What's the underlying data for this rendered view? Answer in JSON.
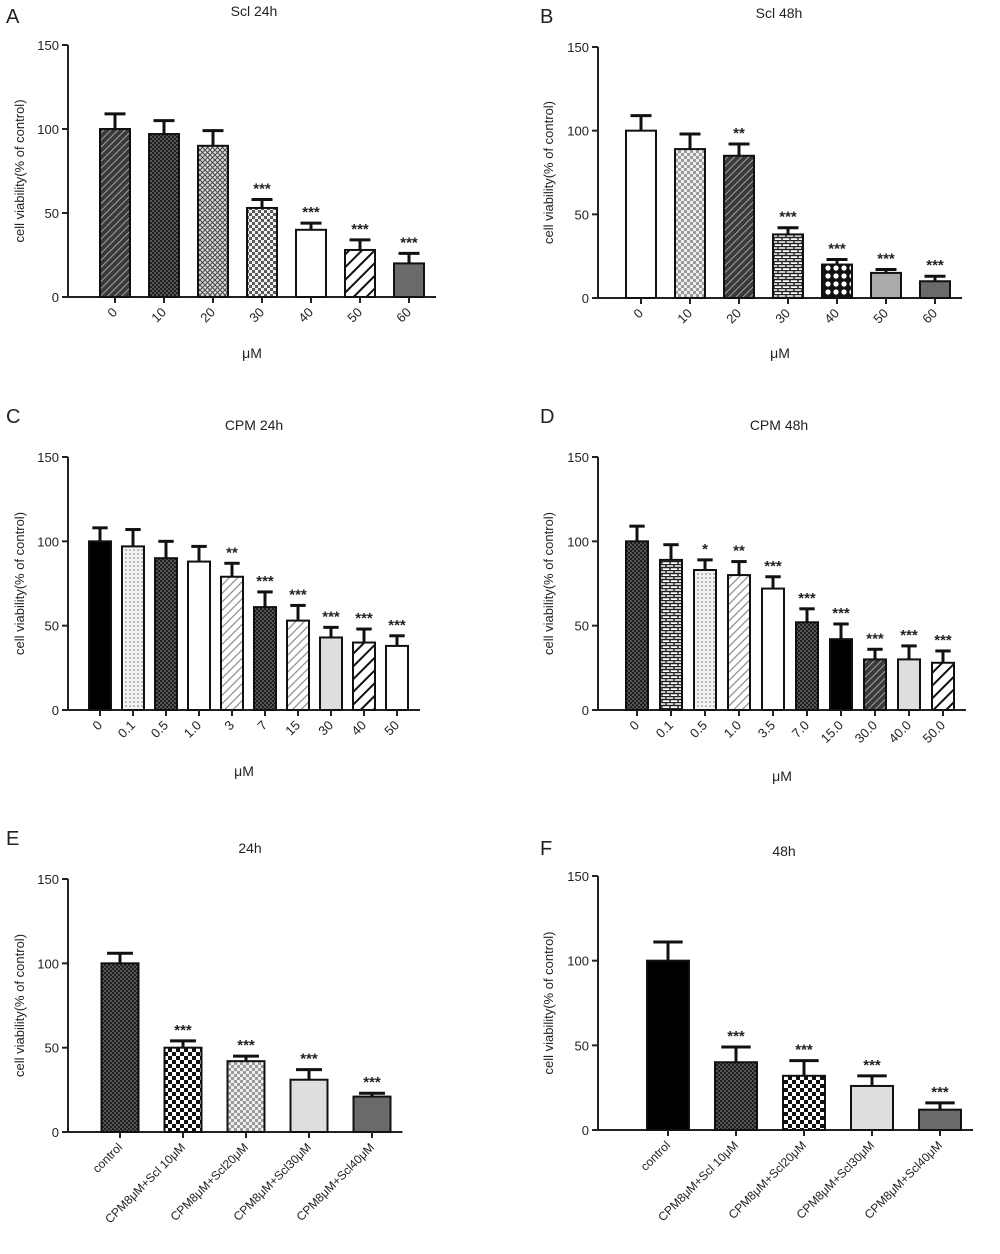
{
  "chart_data": [
    {
      "panel_letter": "A",
      "type": "bar",
      "title": "Scl 24h",
      "xlabel": "μM",
      "ylabel": "cell viability(% of control)",
      "ylim": [
        0,
        150
      ],
      "yticks": [
        0,
        50,
        100,
        150
      ],
      "grid": false,
      "categories": [
        "0",
        "10",
        "20",
        "30",
        "40",
        "50",
        "60"
      ],
      "values": [
        100,
        97,
        90,
        53,
        40,
        28,
        20
      ],
      "errors": [
        9,
        8,
        9,
        5,
        4,
        6,
        6
      ],
      "significance": [
        "",
        "",
        "",
        "***",
        "***",
        "***",
        "***"
      ],
      "fills": [
        "hatch-dark",
        "check-dark",
        "cross-light",
        "check-small",
        "white",
        "hatch-bw",
        "solid-gray"
      ]
    },
    {
      "panel_letter": "B",
      "type": "bar",
      "title": "Scl 48h",
      "xlabel": "μM",
      "ylabel": "cell viability(% of control)",
      "ylim": [
        0,
        150
      ],
      "yticks": [
        0,
        50,
        100,
        150
      ],
      "grid": false,
      "categories": [
        "0",
        "10",
        "20",
        "30",
        "40",
        "50",
        "60"
      ],
      "values": [
        100,
        89,
        85,
        38,
        20,
        15,
        10
      ],
      "errors": [
        9,
        9,
        7,
        4,
        3,
        2,
        3
      ],
      "significance": [
        "",
        "",
        "**",
        "***",
        "***",
        "***",
        "***"
      ],
      "fills": [
        "white",
        "check-light",
        "hatch-dark",
        "brick",
        "dots",
        "solid-light",
        "solid-gray"
      ]
    },
    {
      "panel_letter": "C",
      "type": "bar",
      "title": "CPM 24h",
      "xlabel": "μM",
      "ylabel": "cell viability(% of control)",
      "ylim": [
        0,
        150
      ],
      "yticks": [
        0,
        50,
        100,
        150
      ],
      "grid": false,
      "categories": [
        "0",
        "0.1",
        "0.5",
        "1.0",
        "3",
        "7",
        "15",
        "30",
        "40",
        "50"
      ],
      "values": [
        100,
        97,
        90,
        88,
        79,
        61,
        53,
        43,
        40,
        38
      ],
      "errors": [
        8,
        10,
        10,
        9,
        8,
        9,
        9,
        6,
        8,
        6
      ],
      "significance": [
        "",
        "",
        "",
        "",
        "**",
        "***",
        "***",
        "***",
        "***",
        "***"
      ],
      "fills": [
        "solid-black",
        "dots-light",
        "check-dark",
        "white",
        "hatch-light",
        "check-dark",
        "hatch-light",
        "solid-lighter",
        "hatch-bw",
        "white"
      ]
    },
    {
      "panel_letter": "D",
      "type": "bar",
      "title": "CPM 48h",
      "xlabel": "μM",
      "ylabel": "cell viability(% of control)",
      "ylim": [
        0,
        150
      ],
      "yticks": [
        0,
        50,
        100,
        150
      ],
      "grid": false,
      "categories": [
        "0",
        "0.1",
        "0.5",
        "1.0",
        "3.5",
        "7.0",
        "15.0",
        "30.0",
        "40.0",
        "50.0"
      ],
      "values": [
        100,
        89,
        83,
        80,
        72,
        52,
        42,
        30,
        30,
        28
      ],
      "errors": [
        9,
        9,
        6,
        8,
        7,
        8,
        9,
        6,
        8,
        7
      ],
      "significance": [
        "",
        "",
        "*",
        "**",
        "***",
        "***",
        "***",
        "***",
        "***",
        "***"
      ],
      "fills": [
        "check-dark",
        "brick",
        "dots-light",
        "hatch-light",
        "white",
        "check-dark",
        "solid-black",
        "hatch-dark",
        "solid-lighter",
        "hatch-bw"
      ]
    },
    {
      "panel_letter": "E",
      "type": "bar",
      "title": "24h",
      "xlabel": "",
      "ylabel": "cell viability(% of control)",
      "ylim": [
        0,
        150
      ],
      "yticks": [
        0,
        50,
        100,
        150
      ],
      "grid": false,
      "categories": [
        "control",
        "CPM8μM+Scl 10μM",
        "CPM8μM+Scl20μM",
        "CPM8μM+Scl30μM",
        "CPM8μM+Scl40μM"
      ],
      "values": [
        100,
        50,
        42,
        31,
        21
      ],
      "errors": [
        6,
        4,
        3,
        6,
        2
      ],
      "significance": [
        "",
        "***",
        "***",
        "***",
        "***"
      ],
      "fills": [
        "check-dark",
        "check-bw",
        "check-light",
        "solid-lighter",
        "solid-gray"
      ]
    },
    {
      "panel_letter": "F",
      "type": "bar",
      "title": "48h",
      "xlabel": "",
      "ylabel": "cell viability(% of control)",
      "ylim": [
        0,
        150
      ],
      "yticks": [
        0,
        50,
        100,
        150
      ],
      "grid": false,
      "categories": [
        "control",
        "CPM8μM+Scl 10μM",
        "CPM8μM+Scl20μM",
        "CPM8μM+Scl30μM",
        "CPM8μM+Scl40μM"
      ],
      "values": [
        100,
        40,
        32,
        26,
        12
      ],
      "errors": [
        11,
        9,
        9,
        6,
        4
      ],
      "significance": [
        "",
        "***",
        "***",
        "***",
        "***"
      ],
      "fills": [
        "solid-black",
        "check-dark",
        "check-bw",
        "solid-lighter",
        "solid-gray"
      ]
    }
  ]
}
